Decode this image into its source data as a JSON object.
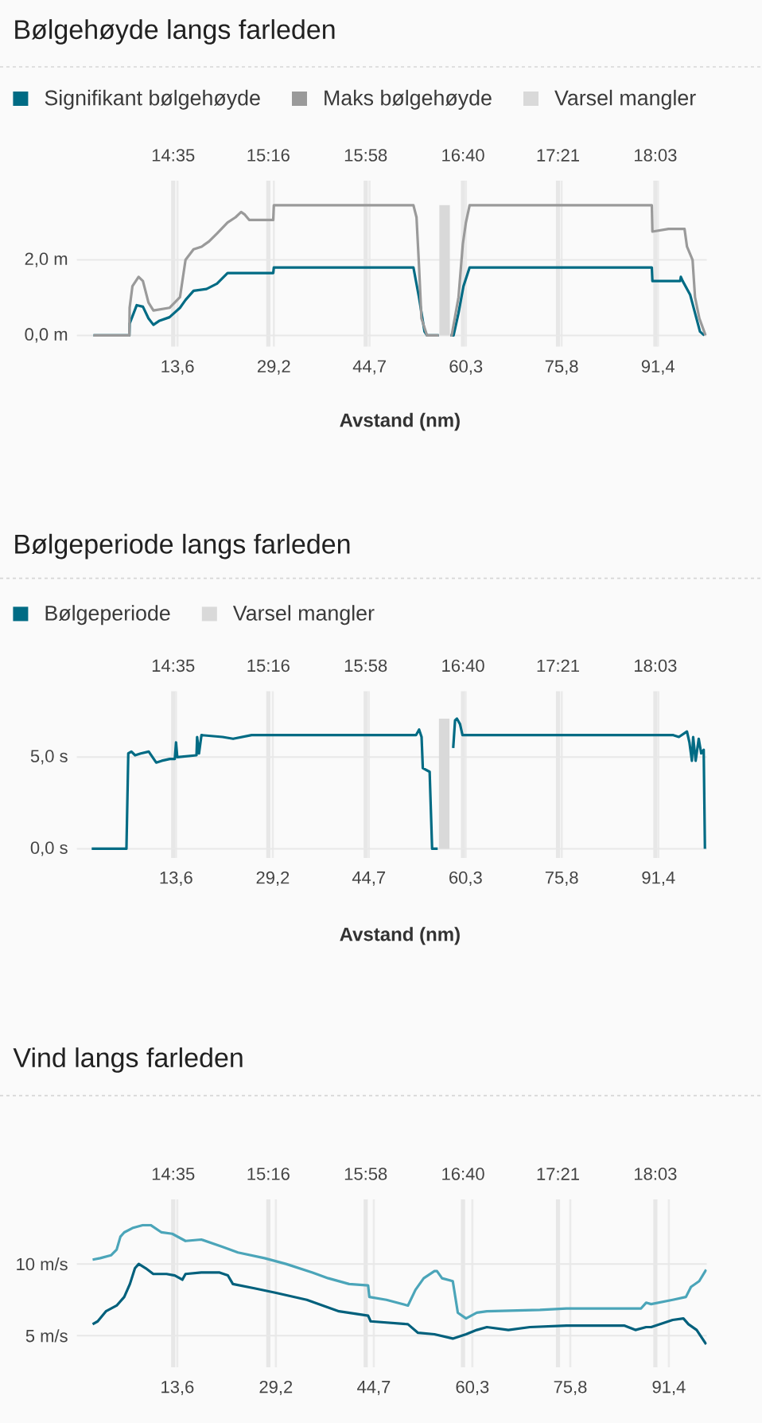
{
  "chart_data": [
    {
      "type": "line",
      "title": "Bølgehøyde langs farleden",
      "xlabel": "Avstand (nm)",
      "xlim": [
        -2.7,
        99.3
      ],
      "xticks": [
        {
          "value": 13.6,
          "label": "13,6"
        },
        {
          "value": 29.2,
          "label": "29,2"
        },
        {
          "value": 44.7,
          "label": "44,7"
        },
        {
          "value": 60.3,
          "label": "60,3"
        },
        {
          "value": 75.8,
          "label": "75,8"
        },
        {
          "value": 91.4,
          "label": "91,4"
        }
      ],
      "x2lim": [
        13.89,
        18.42
      ],
      "x2ticks": [
        {
          "value": 14.583,
          "label": "14:35"
        },
        {
          "value": 15.267,
          "label": "15:16"
        },
        {
          "value": 15.967,
          "label": "15:58"
        },
        {
          "value": 16.667,
          "label": "16:40"
        },
        {
          "value": 17.35,
          "label": "17:21"
        },
        {
          "value": 18.05,
          "label": "18:03"
        }
      ],
      "ylim": [
        -0.3,
        4.1
      ],
      "yticks": [
        {
          "value": 0,
          "label": "0,0 m"
        },
        {
          "value": 2,
          "label": "2,0 m"
        }
      ],
      "grid": true,
      "legend": "top left",
      "series": [
        {
          "name": "Signifikant bølgehøyde",
          "color": "#006b84",
          "x": [
            0,
            5.8,
            5.85,
            7.0,
            8.0,
            8.9,
            9.7,
            10.6,
            12.3,
            14.0,
            14.9,
            16.2,
            18.3,
            20.0,
            21.7,
            29.1,
            29.2,
            51.8,
            52.7,
            53.6,
            54.0,
            55.9,
            56.8,
            57.8,
            58.3,
            59.1,
            59.9,
            60.9,
            90.4,
            90.5,
            95.0,
            95.1,
            95.4,
            96.6,
            97.4,
            98.2,
            98.9
          ],
          "values": [
            0,
            0,
            0.31,
            0.8,
            0.76,
            0.45,
            0.28,
            0.38,
            0.48,
            0.73,
            0.94,
            1.18,
            1.23,
            1.37,
            1.65,
            1.65,
            1.8,
            1.8,
            1.01,
            0.1,
            0,
            0,
            null,
            0,
            0,
            0.59,
            1.3,
            1.8,
            1.8,
            1.44,
            1.44,
            1.55,
            1.44,
            1.08,
            0.59,
            0.1,
            0
          ]
        },
        {
          "name": "Maks bølgehøyde",
          "color": "#9a9a9a",
          "x": [
            0,
            5.8,
            5.85,
            6.3,
            7.3,
            8.0,
            8.9,
            9.7,
            12.3,
            14.0,
            14.9,
            16.2,
            17.5,
            18.7,
            20.0,
            21.7,
            23.0,
            23.9,
            24.5,
            25.2,
            29.1,
            29.2,
            51.8,
            52.3,
            52.7,
            53.1,
            54.0,
            55.9,
            56.8,
            57.8,
            58.0,
            59.1,
            59.8,
            60.3,
            60.9,
            90.4,
            90.5,
            93.1,
            95.7,
            96.1,
            97.0,
            97.4,
            98.1,
            99.1
          ],
          "values": [
            0,
            0,
            0.73,
            1.3,
            1.55,
            1.44,
            0.87,
            0.66,
            0.73,
            1.01,
            2.0,
            2.28,
            2.35,
            2.49,
            2.7,
            2.99,
            3.13,
            3.27,
            3.2,
            3.06,
            3.06,
            3.45,
            3.45,
            3.13,
            1.86,
            0.45,
            0,
            0,
            null,
            0,
            0,
            1.01,
            2.42,
            2.99,
            3.45,
            3.45,
            2.75,
            2.82,
            2.82,
            2.35,
            2.0,
            1.01,
            0.45,
            0
          ]
        }
      ],
      "bands": [
        {
          "axis": "x",
          "from": 56.0,
          "to": 57.7,
          "label": "Varsel mangler",
          "color": "#d9d9d9"
        }
      ]
    },
    {
      "type": "line",
      "title": "Bølgeperiode langs farleden",
      "xlabel": "Avstand (nm)",
      "xlim": [
        -2.4,
        99.2
      ],
      "xticks": [
        {
          "value": 13.6,
          "label": "13,6"
        },
        {
          "value": 29.2,
          "label": "29,2"
        },
        {
          "value": 44.7,
          "label": "44,7"
        },
        {
          "value": 60.3,
          "label": "60,3"
        },
        {
          "value": 75.8,
          "label": "75,8"
        },
        {
          "value": 91.4,
          "label": "91,4"
        }
      ],
      "x2lim": [
        13.89,
        18.42
      ],
      "x2ticks": [
        {
          "value": 14.583,
          "label": "14:35"
        },
        {
          "value": 15.267,
          "label": "15:16"
        },
        {
          "value": 15.967,
          "label": "15:58"
        },
        {
          "value": 16.667,
          "label": "16:40"
        },
        {
          "value": 17.35,
          "label": "17:21"
        },
        {
          "value": 18.05,
          "label": "18:03"
        }
      ],
      "ylim": [
        -0.5,
        8.6
      ],
      "yticks": [
        {
          "value": 0,
          "label": "0,0 s"
        },
        {
          "value": 5,
          "label": "5,0 s"
        }
      ],
      "grid": true,
      "legend": "top left",
      "series": [
        {
          "name": "Bølgeperiode",
          "color": "#006b84",
          "x": [
            0,
            5.6,
            5.9,
            6.4,
            7.0,
            7.9,
            9.2,
            10.4,
            11.3,
            12.6,
            13.4,
            13.6,
            13.8,
            16.9,
            17.0,
            17.3,
            17.7,
            21.1,
            22.8,
            25.8,
            52.3,
            52.8,
            53.2,
            53.4,
            54.5,
            54.9,
            55.8,
            56.8,
            58.3,
            58.6,
            58.9,
            59.4,
            59.8,
            93.8,
            94.7,
            96.0,
            96.4,
            96.8,
            97.0,
            97.4,
            97.9,
            98.3,
            98.7,
            98.9
          ],
          "values": [
            0,
            0,
            5.2,
            5.3,
            5.1,
            5.2,
            5.3,
            4.7,
            4.8,
            4.9,
            4.9,
            5.8,
            5.0,
            5.1,
            6.1,
            5.2,
            6.2,
            6.1,
            6.0,
            6.2,
            6.2,
            6.5,
            6.1,
            4.4,
            4.2,
            0,
            0,
            null,
            5.5,
            7.0,
            7.1,
            6.8,
            6.2,
            6.2,
            6.1,
            6.4,
            5.8,
            4.8,
            6.1,
            4.8,
            6.0,
            5.2,
            5.4,
            0
          ]
        }
      ],
      "bands": [
        {
          "axis": "x",
          "from": 56.0,
          "to": 57.7,
          "label": "Varsel mangler",
          "color": "#d9d9d9"
        }
      ]
    },
    {
      "type": "line",
      "title": "Vind langs farleden",
      "xlim": [
        -2.3,
        97.4
      ],
      "xticks": [
        {
          "value": 13.6,
          "label": "13,6"
        },
        {
          "value": 29.2,
          "label": "29,2"
        },
        {
          "value": 44.7,
          "label": "44,7"
        },
        {
          "value": 60.3,
          "label": "60,3"
        },
        {
          "value": 75.8,
          "label": "75,8"
        },
        {
          "value": 91.4,
          "label": "91,4"
        }
      ],
      "x2lim": [
        13.89,
        18.42
      ],
      "x2ticks": [
        {
          "value": 14.583,
          "label": "14:35"
        },
        {
          "value": 15.267,
          "label": "15:16"
        },
        {
          "value": 15.967,
          "label": "15:58"
        },
        {
          "value": 16.667,
          "label": "16:40"
        },
        {
          "value": 17.35,
          "label": "17:21"
        },
        {
          "value": 18.05,
          "label": "18:03"
        }
      ],
      "ylim": [
        2.8,
        14.5
      ],
      "yticks": [
        {
          "value": 5,
          "label": "5 m/s"
        },
        {
          "value": 10,
          "label": "10 m/s"
        }
      ],
      "grid": true,
      "series": [
        {
          "color": "#4ba5b9",
          "x": [
            0.2,
            1.4,
            3.1,
            4.0,
            4.6,
            5.2,
            6.5,
            8.1,
            9.4,
            11.1,
            12.8,
            14.9,
            17.4,
            20.7,
            23.2,
            27.4,
            30.8,
            35.0,
            37.5,
            40.8,
            43.8,
            44.0,
            46.7,
            50.1,
            51.3,
            52.6,
            54.3,
            54.7,
            55.5,
            57.2,
            58.0,
            59.3,
            61.0,
            62.6,
            71.0,
            75.2,
            87.0,
            87.8,
            88.6,
            92.0,
            94.1,
            94.9,
            96.2,
            97.3
          ],
          "values": [
            10.3,
            10.4,
            10.6,
            11.0,
            11.9,
            12.2,
            12.5,
            12.7,
            12.7,
            12.2,
            12.1,
            11.6,
            11.7,
            11.2,
            10.8,
            10.4,
            10.0,
            9.4,
            9.0,
            8.6,
            8.5,
            7.7,
            7.5,
            7.1,
            8.2,
            9.0,
            9.5,
            9.5,
            9.0,
            8.8,
            6.6,
            6.2,
            6.6,
            6.7,
            6.8,
            6.9,
            6.9,
            7.3,
            7.2,
            7.5,
            7.7,
            8.4,
            8.8,
            9.6
          ]
        },
        {
          "color": "#00607c",
          "x": [
            0.2,
            1.0,
            2.3,
            4.0,
            5.2,
            6.1,
            6.9,
            7.5,
            8.6,
            9.8,
            11.9,
            13.2,
            14.4,
            14.9,
            17.4,
            20.3,
            21.6,
            22.4,
            25.8,
            29.1,
            34.1,
            39.2,
            43.8,
            44.2,
            50.1,
            51.7,
            54.3,
            57.2,
            59.3,
            61.0,
            62.6,
            66.0,
            69.4,
            75.2,
            84.4,
            86.1,
            87.8,
            88.6,
            92.0,
            93.7,
            94.5,
            95.8,
            97.3
          ],
          "values": [
            5.8,
            6.0,
            6.7,
            7.1,
            7.7,
            8.6,
            9.7,
            10.0,
            9.7,
            9.3,
            9.3,
            9.2,
            8.9,
            9.3,
            9.4,
            9.4,
            9.2,
            8.6,
            8.3,
            8.0,
            7.5,
            6.7,
            6.4,
            6.0,
            5.8,
            5.2,
            5.1,
            4.8,
            5.1,
            5.4,
            5.6,
            5.4,
            5.6,
            5.7,
            5.7,
            5.4,
            5.6,
            5.6,
            6.1,
            6.2,
            5.8,
            5.4,
            4.4
          ]
        }
      ]
    }
  ]
}
